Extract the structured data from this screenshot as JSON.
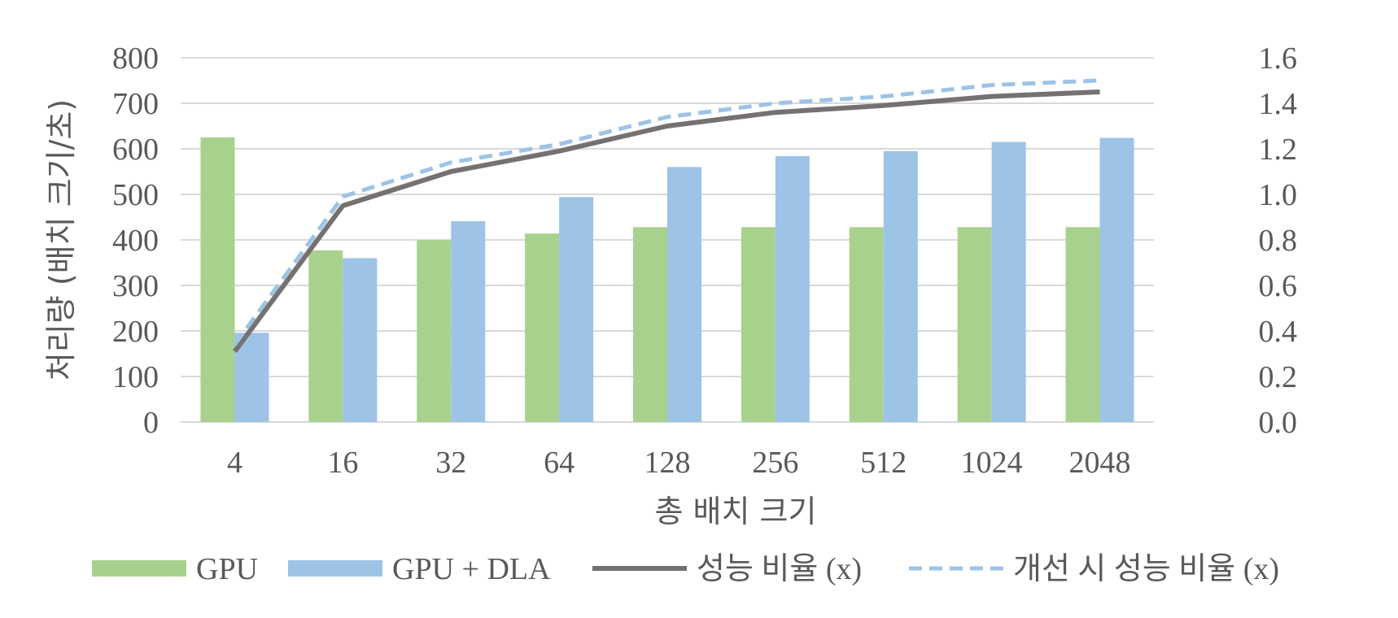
{
  "chart_data": {
    "type": "bar",
    "categories": [
      "4",
      "16",
      "32",
      "64",
      "128",
      "256",
      "512",
      "1024",
      "2048"
    ],
    "xlabel": "총 배치 크기",
    "ylabel": "처리량 (배치 크기/초)",
    "ylim": [
      0,
      800
    ],
    "y_ticks": [
      "0",
      "100",
      "200",
      "300",
      "400",
      "500",
      "600",
      "700",
      "800"
    ],
    "y2lim": [
      0,
      1.6
    ],
    "y2_ticks": [
      "0.0",
      "0.2",
      "0.4",
      "0.6",
      "0.8",
      "1.0",
      "1.2",
      "1.4",
      "1.6"
    ],
    "grid": true,
    "legend_position": "bottom",
    "series": [
      {
        "name": "GPU",
        "type": "bar",
        "axis": "left",
        "color": "#a9d18e",
        "values": [
          625,
          377,
          400,
          414,
          428,
          428,
          428,
          428,
          428
        ]
      },
      {
        "name": "GPU + DLA",
        "type": "bar",
        "axis": "left",
        "color": "#9dc3e6",
        "values": [
          196,
          360,
          441,
          494,
          560,
          584,
          595,
          615,
          624
        ]
      },
      {
        "name": "성능 비율 (x)",
        "type": "line",
        "axis": "right",
        "color": "#767171",
        "dash": false,
        "values": [
          0.31,
          0.95,
          1.1,
          1.19,
          1.3,
          1.36,
          1.39,
          1.43,
          1.45
        ]
      },
      {
        "name": "개선 시 성능 비율 (x)",
        "type": "line",
        "axis": "right",
        "color": "#9dc3e6",
        "dash": true,
        "values": [
          0.34,
          0.99,
          1.14,
          1.22,
          1.34,
          1.4,
          1.43,
          1.48,
          1.5
        ]
      }
    ]
  }
}
